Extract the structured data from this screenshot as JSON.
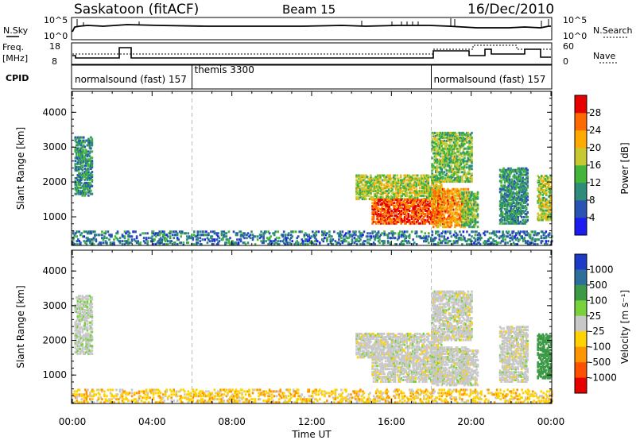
{
  "header": {
    "station": "Saskatoon (fitACF)",
    "beam": "Beam 15",
    "date": "16/Dec/2010"
  },
  "noise_panel": {
    "left_label": "N.Sky",
    "right_label": "N.Search",
    "left_ticks": [
      "10^5",
      "10^0"
    ],
    "right_ticks": [
      "10^5",
      "10^0"
    ]
  },
  "freq_panel": {
    "left_label_1": "Freq.",
    "left_label_2": "[MHz]",
    "right_label": "Nave",
    "left_ticks": [
      "18",
      "8"
    ],
    "right_ticks": [
      "60",
      "0"
    ]
  },
  "cpid_panel": {
    "label": "CPID",
    "segments": [
      {
        "start_h": 0,
        "text": "normalsound (fast) 157"
      },
      {
        "start_h": 6,
        "text": "themis 3300"
      },
      {
        "start_h": 18,
        "text": "normalsound (fast) 157"
      }
    ]
  },
  "x_axis": {
    "title": "Time UT",
    "range_h": [
      0,
      24
    ],
    "ticks": [
      {
        "h": 0,
        "label": "00:00"
      },
      {
        "h": 4,
        "label": "04:00"
      },
      {
        "h": 8,
        "label": "08:00"
      },
      {
        "h": 12,
        "label": "12:00"
      },
      {
        "h": 16,
        "label": "16:00"
      },
      {
        "h": 20,
        "label": "20:00"
      },
      {
        "h": 24,
        "label": "00:00"
      }
    ]
  },
  "panels": [
    {
      "id": "power",
      "ylabel": "Slant Range [km]",
      "yticks": [
        "1000",
        "2000",
        "3000",
        "4000"
      ],
      "yrange_km": [
        180,
        4600
      ],
      "cbar_label": "Power [dB]",
      "cbar_ticks": [
        "4",
        "8",
        "12",
        "16",
        "20",
        "24",
        "28"
      ],
      "cbar_colors": [
        "#1c1cf0",
        "#2a54b4",
        "#2e8c78",
        "#43b43c",
        "#c8c832",
        "#ffaa00",
        "#ff6a00",
        "#e60000"
      ]
    },
    {
      "id": "velocity",
      "ylabel": "Slant Range [km]",
      "yticks": [
        "1000",
        "2000",
        "3000",
        "4000"
      ],
      "yrange_km": [
        180,
        4600
      ],
      "cbar_label": "Velocity [m s⁻¹]",
      "cbar_ticks": [
        "1000",
        "500",
        "100",
        "25",
        "-25",
        "-100",
        "-500",
        "-1000"
      ],
      "cbar_colors": [
        "#1c3cc8",
        "#2e6e9a",
        "#3c9a46",
        "#78d23c",
        "#c8c8c8",
        "#ffd200",
        "#ff9600",
        "#ff5000",
        "#e60000"
      ]
    }
  ],
  "chart_data": {
    "type": "heatmap",
    "title": "Saskatoon (fitACF) Beam 15 16/Dec/2010",
    "xlabel": "Time UT",
    "ylabel": "Slant Range [km]",
    "xlim": [
      0,
      24
    ],
    "ylim": [
      180,
      4600
    ],
    "series": [
      {
        "name": "Power [dB]",
        "clim": [
          0,
          30
        ]
      },
      {
        "name": "Velocity [m s⁻¹]",
        "clim": [
          -1000,
          1000
        ]
      }
    ],
    "echo_regions": [
      {
        "t": [
          0.1,
          1.0
        ],
        "range": [
          1600,
          3300
        ],
        "power": 10,
        "velocity": 10
      },
      {
        "t": [
          0.0,
          24.0
        ],
        "range": [
          200,
          600
        ],
        "power": 8,
        "velocity": -40
      },
      {
        "t": [
          14.2,
          18.5
        ],
        "range": [
          1500,
          2200
        ],
        "power": 16,
        "velocity": 0
      },
      {
        "t": [
          15.0,
          18.5
        ],
        "range": [
          800,
          1500
        ],
        "power": 26,
        "velocity": 0
      },
      {
        "t": [
          18.0,
          19.8
        ],
        "range": [
          700,
          1800
        ],
        "power": 22,
        "velocity": 0
      },
      {
        "t": [
          18.0,
          20.0
        ],
        "range": [
          2000,
          3400
        ],
        "power": 14,
        "velocity": 0
      },
      {
        "t": [
          19.5,
          20.3
        ],
        "range": [
          700,
          1700
        ],
        "power": 14,
        "velocity": 0
      },
      {
        "t": [
          21.4,
          22.8
        ],
        "range": [
          800,
          2400
        ],
        "power": 10,
        "velocity": 0
      },
      {
        "t": [
          23.3,
          24.0
        ],
        "range": [
          900,
          2200
        ],
        "power": 16,
        "velocity": 100
      }
    ]
  }
}
